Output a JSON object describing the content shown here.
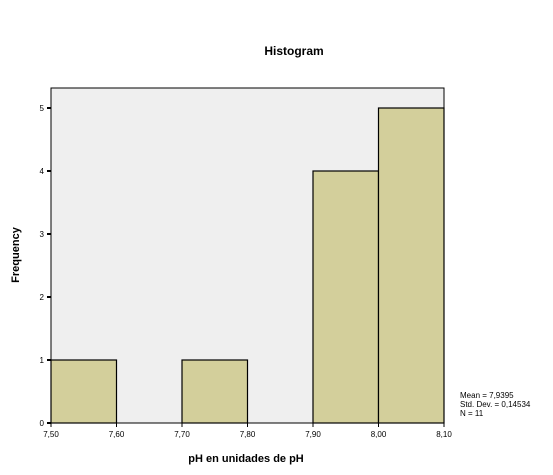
{
  "chart_data": {
    "type": "bar",
    "title": "Histogram",
    "xlabel": "pH en  unidades de pH",
    "ylabel": "Frequency",
    "xlim": [
      7.5,
      8.1
    ],
    "ylim": [
      0,
      5
    ],
    "x_tick_labels": [
      "7,50",
      "7,60",
      "7,70",
      "7,80",
      "7,90",
      "8,00",
      "8,10"
    ],
    "y_tick_labels": [
      "0",
      "1",
      "2",
      "3",
      "4",
      "5"
    ],
    "bins": [
      {
        "start": 7.5,
        "end": 7.6,
        "value": 1
      },
      {
        "start": 7.6,
        "end": 7.7,
        "value": 0
      },
      {
        "start": 7.7,
        "end": 7.8,
        "value": 1
      },
      {
        "start": 7.8,
        "end": 7.9,
        "value": 0
      },
      {
        "start": 7.9,
        "end": 8.0,
        "value": 4
      },
      {
        "start": 8.0,
        "end": 8.1,
        "value": 5
      }
    ],
    "stats": [
      "Mean = 7,9395",
      "Std. Dev. = 0,14534",
      "N = 11"
    ],
    "colors": {
      "bar_fill": "#d3cf9b",
      "plot_background": "#efefef",
      "axis": "#000000"
    }
  }
}
